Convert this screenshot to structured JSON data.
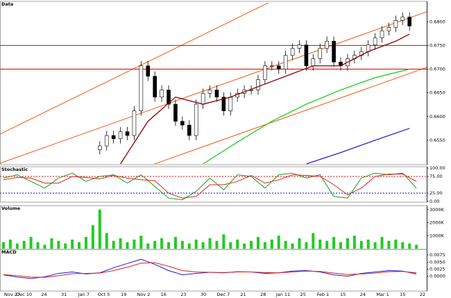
{
  "chart_data": [
    {
      "type": "candlestick",
      "title": "Data",
      "xlim": [
        -0.5,
        61.5
      ],
      "x": [
        14,
        15,
        16,
        17,
        18,
        19,
        20,
        21,
        22,
        23,
        24,
        25,
        26,
        27,
        28,
        29,
        30,
        31,
        32,
        33,
        34,
        35,
        36,
        37,
        38,
        39,
        40,
        41,
        42,
        43,
        44,
        45,
        46,
        47,
        48,
        49,
        50,
        51,
        52,
        53,
        54,
        55,
        56,
        57,
        58,
        59
      ],
      "open": [
        0.653,
        0.6538,
        0.656,
        0.6553,
        0.6568,
        0.656,
        0.6612,
        0.6707,
        0.6685,
        0.6641,
        0.6656,
        0.6626,
        0.659,
        0.6582,
        0.656,
        0.6626,
        0.6649,
        0.6656,
        0.6641,
        0.6612,
        0.6641,
        0.6649,
        0.6656,
        0.6656,
        0.6678,
        0.6707,
        0.6707,
        0.67,
        0.6729,
        0.6744,
        0.6751,
        0.6707,
        0.6722,
        0.6744,
        0.6759,
        0.6715,
        0.6707,
        0.6722,
        0.6729,
        0.6737,
        0.6751,
        0.6766,
        0.6781,
        0.6788,
        0.6803,
        0.681
      ],
      "high": [
        0.6548,
        0.657,
        0.657,
        0.6578,
        0.6578,
        0.6622,
        0.6717,
        0.6717,
        0.6695,
        0.6666,
        0.6666,
        0.6636,
        0.66,
        0.6592,
        0.6636,
        0.6659,
        0.6666,
        0.6666,
        0.6651,
        0.6651,
        0.6659,
        0.6666,
        0.6666,
        0.6688,
        0.6717,
        0.6717,
        0.6717,
        0.6739,
        0.6754,
        0.6761,
        0.6761,
        0.6732,
        0.6754,
        0.6769,
        0.6769,
        0.6725,
        0.6732,
        0.6739,
        0.6747,
        0.6761,
        0.6776,
        0.6791,
        0.6798,
        0.6813,
        0.682,
        0.682
      ],
      "low": [
        0.652,
        0.6528,
        0.6543,
        0.6543,
        0.655,
        0.655,
        0.6602,
        0.6675,
        0.6631,
        0.6631,
        0.6616,
        0.658,
        0.6572,
        0.655,
        0.655,
        0.6616,
        0.6639,
        0.6631,
        0.6602,
        0.6602,
        0.6631,
        0.6639,
        0.6646,
        0.6646,
        0.6668,
        0.6697,
        0.669,
        0.669,
        0.6719,
        0.6734,
        0.6697,
        0.6697,
        0.6712,
        0.6734,
        0.6705,
        0.6697,
        0.6697,
        0.6712,
        0.6719,
        0.6727,
        0.6741,
        0.6756,
        0.6771,
        0.6778,
        0.6793,
        0.6781
      ],
      "close": [
        0.6538,
        0.656,
        0.6553,
        0.6568,
        0.656,
        0.6612,
        0.6707,
        0.6685,
        0.6641,
        0.6656,
        0.6626,
        0.659,
        0.6582,
        0.656,
        0.6626,
        0.6649,
        0.6656,
        0.6641,
        0.6612,
        0.6641,
        0.6649,
        0.6656,
        0.6656,
        0.6678,
        0.6707,
        0.6707,
        0.67,
        0.6729,
        0.6744,
        0.6751,
        0.6707,
        0.6722,
        0.6744,
        0.6759,
        0.6715,
        0.6707,
        0.6722,
        0.6729,
        0.6737,
        0.6751,
        0.6766,
        0.6781,
        0.6788,
        0.6803,
        0.681,
        0.6791
      ],
      "overlays": [
        {
          "color": "#8b0000",
          "x": [
            17,
            21,
            25,
            29,
            33,
            37,
            41,
            45,
            49,
            53,
            57,
            59
          ],
          "values": [
            0.65,
            0.659,
            0.6641,
            0.6626,
            0.6641,
            0.6663,
            0.6685,
            0.6707,
            0.6707,
            0.6737,
            0.6759,
            0.6774
          ]
        },
        {
          "color": "#22cc22",
          "x": [
            29,
            34,
            39,
            44,
            49,
            54,
            59
          ],
          "values": [
            0.65,
            0.6546,
            0.659,
            0.6626,
            0.6656,
            0.6682,
            0.67
          ]
        },
        {
          "color": "#3a1acc",
          "x": [
            44,
            49,
            54,
            59
          ],
          "values": [
            0.65,
            0.6524,
            0.655,
            0.6575
          ]
        }
      ],
      "hlines": [
        {
          "value": 0.675,
          "color": "#e00000"
        },
        {
          "value": 0.67,
          "color": "#e00000"
        }
      ],
      "ylim": [
        0.65,
        0.684
      ],
      "yticks": [
        {
          "value": 0.68,
          "label": "0.6800"
        },
        {
          "value": 0.675,
          "label": "0.6750"
        },
        {
          "value": 0.67,
          "label": "0.6700"
        },
        {
          "value": 0.665,
          "label": "0.6650"
        },
        {
          "value": 0.66,
          "label": "0.6600"
        },
        {
          "value": 0.655,
          "label": "0.6550"
        }
      ]
    },
    {
      "type": "line",
      "title": "Stochastic",
      "xlim": [
        -0.5,
        61.5
      ],
      "x": [
        0,
        2,
        4,
        6,
        8,
        10,
        12,
        14,
        16,
        18,
        20,
        22,
        24,
        26,
        28,
        30,
        32,
        34,
        36,
        38,
        40,
        42,
        44,
        46,
        48,
        50,
        52,
        54,
        56,
        58,
        60
      ],
      "series": [
        {
          "color": "#1a9a1a",
          "values": [
            70,
            80,
            60,
            40,
            70,
            85,
            60,
            75,
            80,
            55,
            80,
            45,
            10,
            5,
            30,
            70,
            35,
            80,
            75,
            40,
            80,
            85,
            70,
            80,
            15,
            10,
            70,
            85,
            80,
            85,
            40
          ]
        },
        {
          "color": "#e02020",
          "values": [
            65,
            72,
            70,
            55,
            55,
            75,
            72,
            68,
            78,
            70,
            65,
            62,
            25,
            10,
            15,
            50,
            50,
            60,
            78,
            55,
            65,
            80,
            78,
            75,
            50,
            20,
            40,
            75,
            82,
            82,
            60
          ]
        }
      ],
      "hlines": [
        {
          "value": 75,
          "color": "#e00000",
          "dashed": true
        },
        {
          "value": 25,
          "color": "#0000e0",
          "dashed": true
        }
      ],
      "ylim": [
        0,
        100
      ],
      "yticks": [
        {
          "value": 100,
          "label": "100.00"
        },
        {
          "value": 75,
          "label": "75.00"
        },
        {
          "value": 25,
          "label": "25.00"
        },
        {
          "value": 0,
          "label": "0.00"
        }
      ]
    },
    {
      "type": "bar",
      "title": "Volume",
      "xlim": [
        -0.5,
        61.5
      ],
      "color": "#22cc22",
      "values": [
        500000,
        700000,
        400000,
        600000,
        900000,
        500000,
        300000,
        800000,
        600000,
        400000,
        700000,
        500000,
        900000,
        1800000,
        3000000,
        1200000,
        600000,
        800000,
        500000,
        700000,
        1000000,
        400000,
        600000,
        800000,
        500000,
        900000,
        600000,
        400000,
        700000,
        500000,
        800000,
        600000,
        1100000,
        500000,
        700000,
        400000,
        600000,
        900000,
        500000,
        700000,
        1000000,
        600000,
        400000,
        800000,
        500000,
        1200000,
        700000,
        600000,
        900000,
        500000,
        800000,
        1000000,
        600000,
        700000,
        500000,
        900000,
        600000,
        700000,
        500000,
        400000,
        300000
      ],
      "ylim": [
        0,
        3200000
      ],
      "yticks": [
        {
          "value": 3000000,
          "label": "3000K"
        },
        {
          "value": 2000000,
          "label": "2000K"
        },
        {
          "value": 1000000,
          "label": "1000K"
        }
      ]
    },
    {
      "type": "line",
      "title": "MACD",
      "xlim": [
        -0.5,
        61.5
      ],
      "x": [
        0,
        2,
        4,
        6,
        8,
        10,
        12,
        14,
        16,
        18,
        20,
        22,
        24,
        26,
        28,
        30,
        32,
        34,
        36,
        38,
        40,
        42,
        44,
        46,
        48,
        50,
        52,
        54,
        56,
        58,
        60
      ],
      "series": [
        {
          "color": "#1a1ae0",
          "values": [
            0.0005,
            -0.0003,
            -0.0008,
            -0.0002,
            0.001,
            0.0015,
            0.0008,
            0.0012,
            0.003,
            0.0045,
            0.006,
            0.0042,
            0.002,
            0.0005,
            0.001,
            0.0014,
            0.0012,
            0.0016,
            0.0015,
            0.001,
            0.0012,
            0.0018,
            0.002,
            0.0015,
            0.0005,
            0.0,
            0.001,
            0.0015,
            0.002,
            0.0018,
            0.0008
          ]
        },
        {
          "color": "#e02020",
          "values": [
            0.0006,
            0.0002,
            -0.0003,
            -0.0004,
            0.0002,
            0.0009,
            0.001,
            0.0011,
            0.002,
            0.0032,
            0.0046,
            0.0048,
            0.0035,
            0.002,
            0.0015,
            0.0014,
            0.0013,
            0.0015,
            0.0015,
            0.0013,
            0.0012,
            0.0015,
            0.0018,
            0.0017,
            0.0011,
            0.0006,
            0.0008,
            0.0011,
            0.0016,
            0.0017,
            0.0012
          ]
        }
      ],
      "ylim": [
        -0.005,
        0.009
      ],
      "yticks": [
        {
          "value": 0.0075,
          "label": "0.0075"
        },
        {
          "value": 0.005,
          "label": "0.0050"
        },
        {
          "value": 0.0025,
          "label": "0.0025"
        },
        {
          "value": 0,
          "label": "0.0000"
        }
      ],
      "date_labels": [
        "Nov 27",
        "Dec 10",
        "24",
        "31",
        "Jan 7",
        "Oct 5",
        "19",
        "Nov 2",
        "16",
        "23",
        "30",
        "Dec 7",
        "21",
        "28",
        "Jan 11",
        "25",
        "Feb 1",
        "15",
        "24",
        "Mar 1",
        "15",
        "22"
      ]
    }
  ]
}
